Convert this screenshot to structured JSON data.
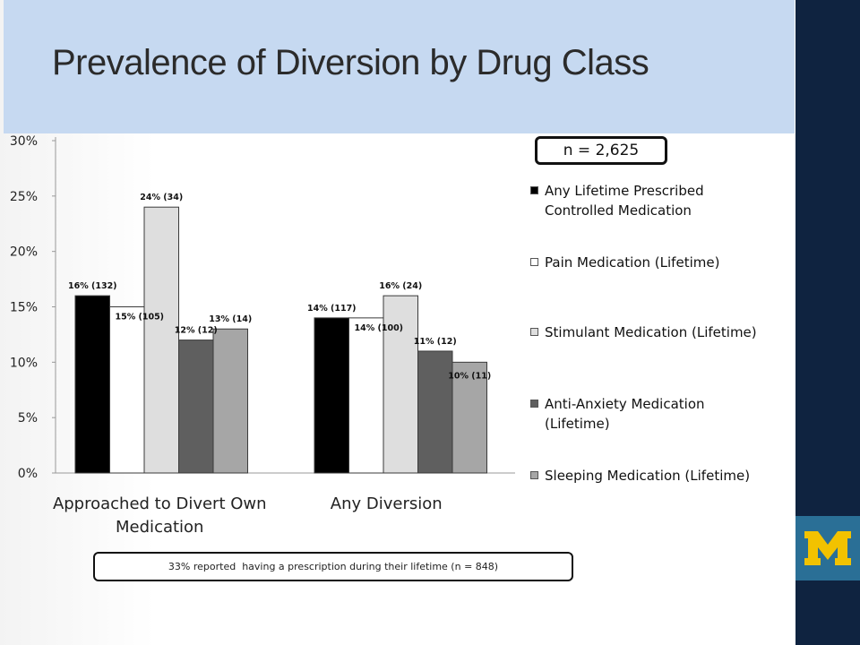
{
  "slide": {
    "title": "Prevalence of Diversion by Drug Class",
    "sample_size_label": "n = 2,625",
    "footnote": "33% reported  having a prescription during their lifetime (n = 848)",
    "logo_icon": "university-of-michigan-block-m-logo",
    "colors": {
      "title_band": "#c6d9f1",
      "right_band": "#0f2340",
      "logo_background": "#2a6f96",
      "logo_letter": "#f2c200"
    }
  },
  "chart_data": {
    "type": "bar",
    "categories": [
      "Approached to Divert Own Medication",
      "Any Diversion"
    ],
    "category_lines": [
      [
        "Approached to Divert Own",
        "Medication"
      ],
      [
        "Any Diversion"
      ]
    ],
    "series": [
      {
        "name": "Any Lifetime Prescribed Controlled Medication",
        "legend_lines": [
          "Any Lifetime Prescribed",
          "Controlled Medication"
        ],
        "color": "#000000",
        "values": [
          16,
          14
        ],
        "labels": [
          "16% (132)",
          "14% (117)"
        ]
      },
      {
        "name": "Pain Medication (Lifetime)",
        "legend_lines": [
          "Pain Medication (Lifetime)"
        ],
        "color": "#ffffff",
        "values": [
          15,
          14
        ],
        "labels": [
          "15% (105)",
          "14% (100)"
        ]
      },
      {
        "name": "Stimulant Medication (Lifetime)",
        "legend_lines": [
          "Stimulant Medication (Lifetime)"
        ],
        "color": "#dedede",
        "values": [
          24,
          16
        ],
        "labels": [
          "24% (34)",
          "16% (24)"
        ]
      },
      {
        "name": "Anti-Anxiety Medication (Lifetime)",
        "legend_lines": [
          "Anti-Anxiety Medication",
          "(Lifetime)"
        ],
        "color": "#5f5f5f",
        "values": [
          12,
          11
        ],
        "labels": [
          "12% (12)",
          "11% (12)"
        ]
      },
      {
        "name": "Sleeping Medication (Lifetime)",
        "legend_lines": [
          "Sleeping Medication (Lifetime)"
        ],
        "color": "#a6a6a6",
        "values": [
          13,
          10
        ],
        "labels": [
          "13% (14)",
          "10% (11)"
        ]
      }
    ],
    "yticks": [
      "0%",
      "5%",
      "10%",
      "15%",
      "20%",
      "25%",
      "30%"
    ],
    "ylim": [
      0,
      30
    ],
    "grid": false,
    "legend_position": "right"
  }
}
